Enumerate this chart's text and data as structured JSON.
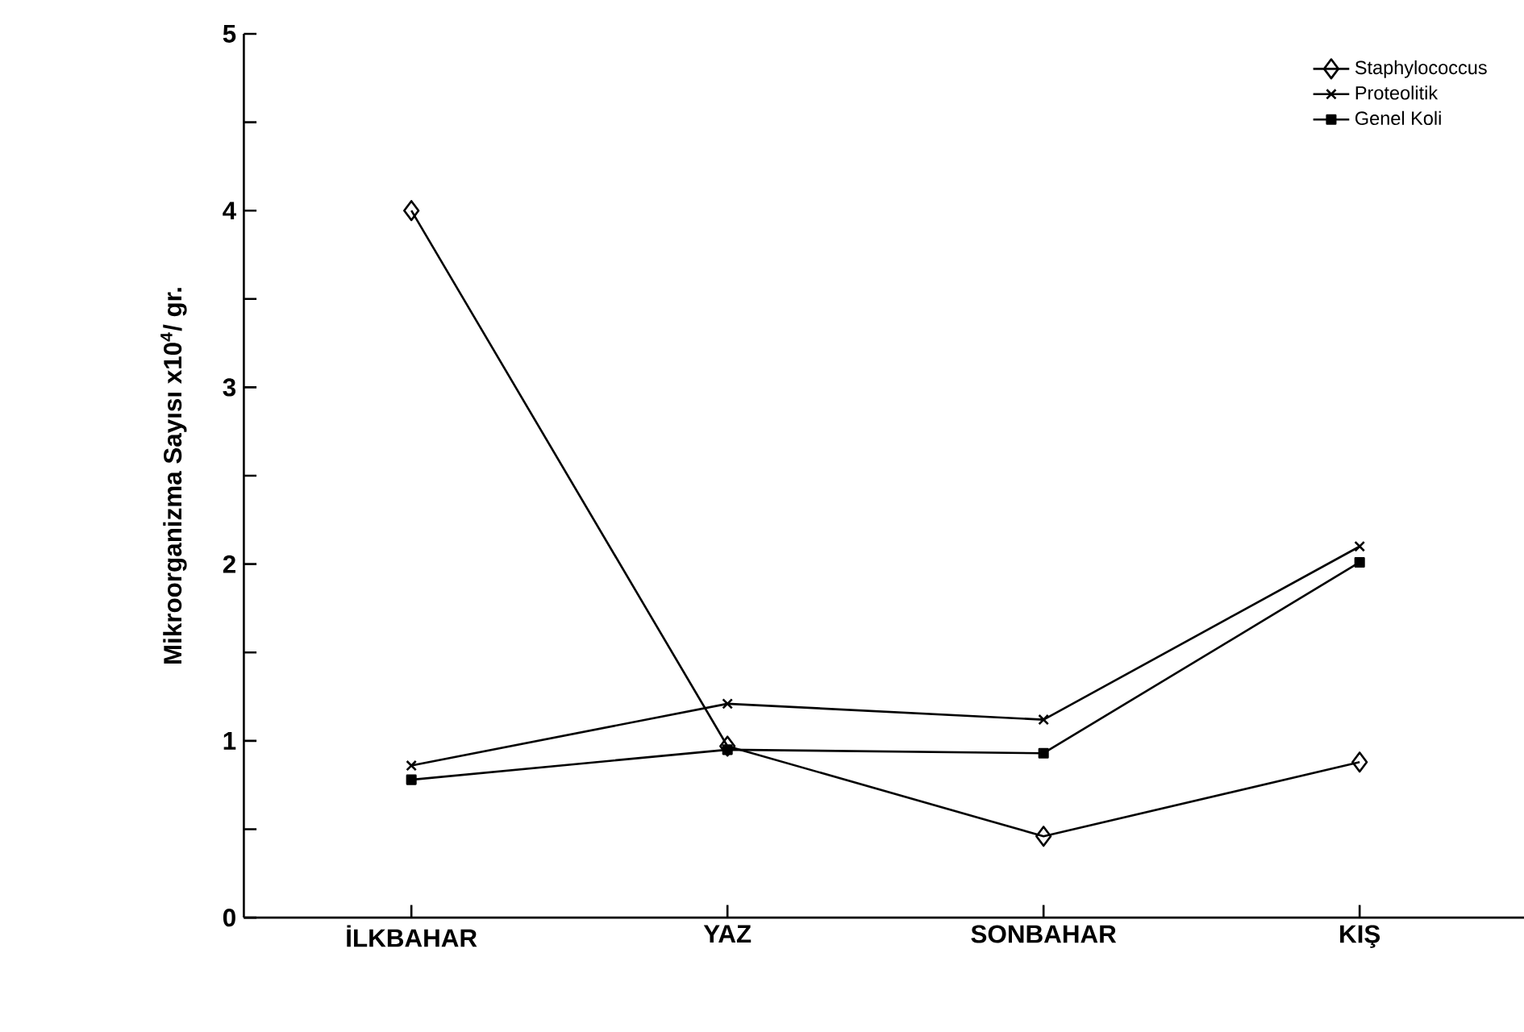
{
  "chart_data": {
    "type": "line",
    "ylabel": "Mikroorganizma Sayısı x10$^{4}$/ gr.",
    "categories": [
      "İLKBAHAR",
      "YAZ",
      "SONBAHAR",
      "KIŞ"
    ],
    "series": [
      {
        "name": "Staphylococcus",
        "color": "#000000",
        "marker": "diamond",
        "values": [
          4.0,
          0.97,
          0.46,
          0.88
        ]
      },
      {
        "name": "Proteolitik",
        "color": "#000000",
        "marker": "cross",
        "values": [
          0.86,
          1.21,
          1.12,
          2.1
        ]
      },
      {
        "name": "Genel Koli",
        "color": "#000000",
        "marker": "square",
        "values": [
          0.78,
          0.95,
          0.93,
          2.01
        ]
      }
    ],
    "ylim": [
      0,
      5
    ],
    "yticks": [
      0,
      {
        "value": 0.5,
        "label": null
      },
      1,
      {
        "value": 1.5,
        "label": null
      },
      2,
      {
        "value": 2.5,
        "label": null
      },
      3,
      {
        "value": 3.5,
        "label": null
      },
      4,
      {
        "value": 4.5,
        "label": null
      },
      5
    ],
    "grid": false,
    "legend": "top right",
    "line_style": "solid"
  }
}
